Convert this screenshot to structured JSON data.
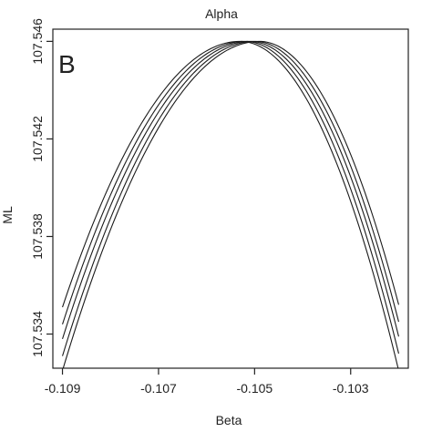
{
  "chart_data": {
    "type": "line",
    "title": "Alpha",
    "panel_label": "B",
    "xlabel": "Beta",
    "ylabel": "ML",
    "xlim": [
      -0.1092,
      -0.1018
    ],
    "ylim": [
      107.5326,
      107.5465
    ],
    "x_ticks": [
      -0.109,
      -0.107,
      -0.105,
      -0.103
    ],
    "x_tick_labels": [
      "-0.109",
      "-0.107",
      "-0.105",
      "-0.103"
    ],
    "y_ticks": [
      107.534,
      107.538,
      107.542,
      107.546
    ],
    "y_tick_labels": [
      "107.534",
      "107.538",
      "107.542",
      "107.546"
    ],
    "grid": false,
    "line_color": "#1a1a1a",
    "series_shape": "parabola",
    "series": [
      {
        "peak_x": -0.1053,
        "peak_y": 107.546,
        "x": [
          -0.109,
          -0.102
        ],
        "y": [
          107.5351,
          107.5325
        ]
      },
      {
        "peak_x": -0.1052,
        "peak_y": 107.546,
        "x": [
          -0.109,
          -0.102
        ],
        "y": [
          107.5344,
          107.5332
        ]
      },
      {
        "peak_x": -0.1051,
        "peak_y": 107.546,
        "x": [
          -0.109,
          -0.102
        ],
        "y": [
          107.5338,
          107.5339
        ]
      },
      {
        "peak_x": -0.105,
        "peak_y": 107.546,
        "x": [
          -0.109,
          -0.102
        ],
        "y": [
          107.5331,
          107.5345
        ]
      },
      {
        "peak_x": -0.1049,
        "peak_y": 107.546,
        "x": [
          -0.109,
          -0.102
        ],
        "y": [
          107.5325,
          107.5352
        ]
      }
    ]
  }
}
